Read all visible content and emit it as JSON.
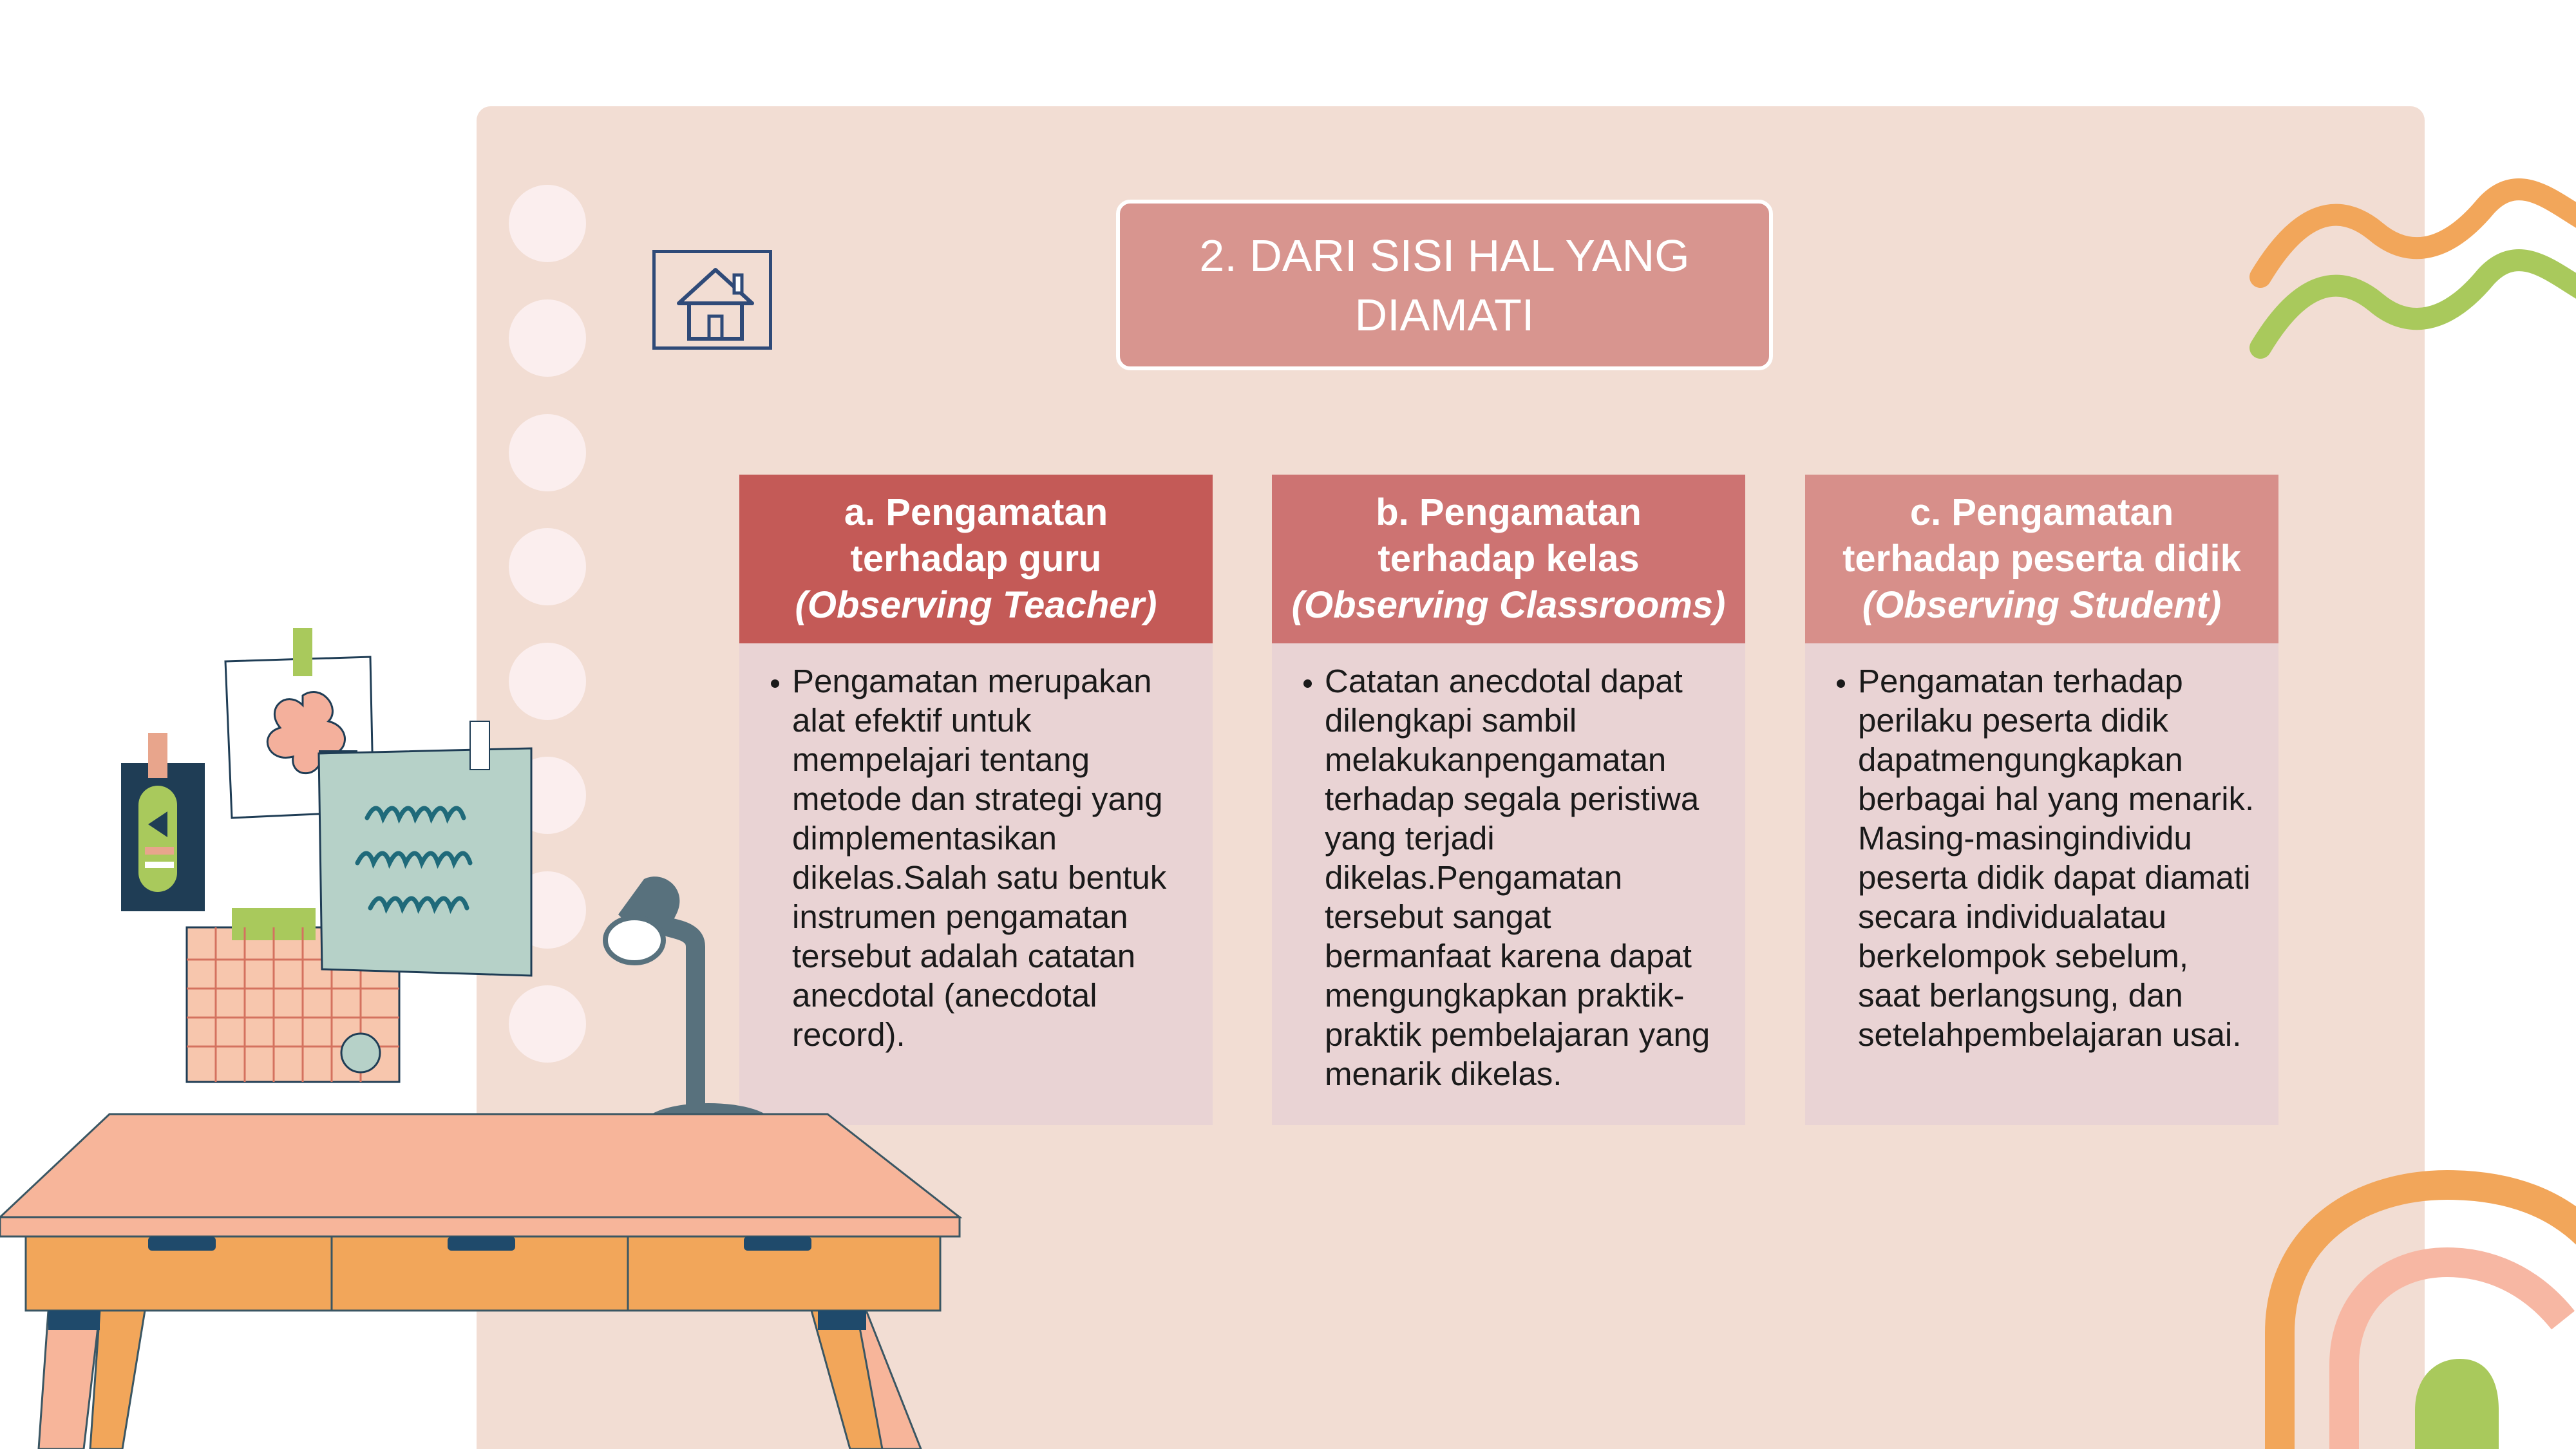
{
  "slide": {
    "title": "2. DARI SISI HAL YANG DIAMATI",
    "home_icon": "home-icon",
    "colors": {
      "background": "#f2ddd3",
      "title_box": "#d8958f",
      "header_a": "#c45a57",
      "header_b": "#cd7372",
      "header_c": "#d78f8a",
      "body": "#e9d3d4"
    },
    "columns": [
      {
        "title": "a. Pengamatan terhadap guru",
        "subtitle": "(Observing Teacher)",
        "text": "Pengamatan merupakan alat efektif untuk mempelajari tentang metode dan strategi yang dimplementasikan dikelas.Salah satu bentuk instrumen pengamatan tersebut adalah catatan anecdotal (anecdotal record)."
      },
      {
        "title": "b. Pengamatan terhadap kelas",
        "subtitle": "(Observing Classrooms)",
        "text": "Catatan anecdotal dapat dilengkapi sambil melakukanpengamatan terhadap segala peristiwa yang terjadi dikelas.Pengamatan tersebut sangat bermanfaat karena dapat mengungkapkan praktik-praktik pembelajaran yang menarik dikelas."
      },
      {
        "title": "c. Pengamatan terhadap peserta didik",
        "subtitle": "(Observing Student)",
        "text": "Pengamatan terhadap perilaku peserta didik dapatmengungkapkan berbagai hal yang menarik. Masing-masingindividu peserta didik dapat diamati secara individualatau berkelompok sebelum, saat berlangsung, dan setelahpembelajaran usai."
      }
    ]
  }
}
